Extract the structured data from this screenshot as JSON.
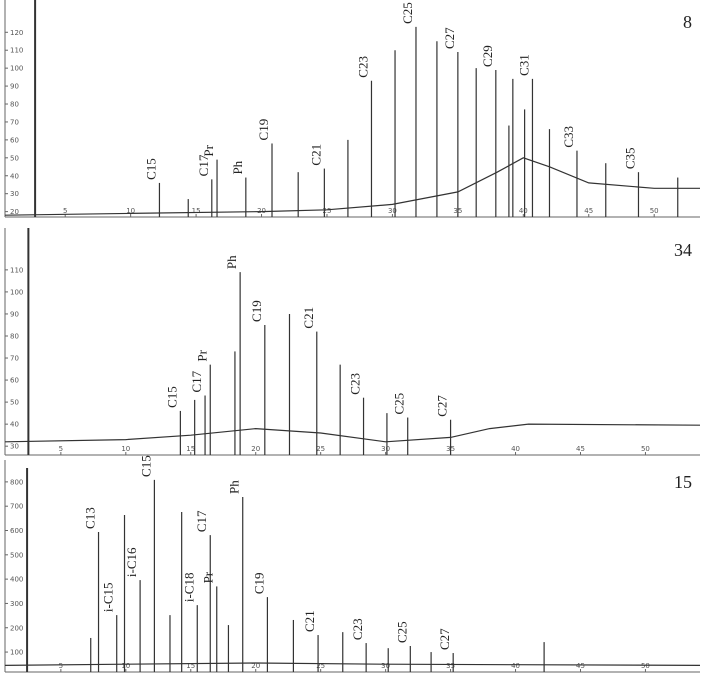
{
  "chart_data": [
    {
      "type": "chromatogram",
      "title": "8",
      "color": "#333333",
      "xlim": [
        0.4,
        53.5
      ],
      "ylim": [
        17,
        138
      ],
      "xticks": [
        5,
        10,
        15,
        20,
        25,
        30,
        35,
        40,
        45,
        50
      ],
      "yticks": [
        20,
        30,
        40,
        50,
        60,
        70,
        80,
        90,
        100,
        110,
        120
      ],
      "baseline": {
        "x": [
          0.4,
          10,
          20,
          25,
          30,
          35,
          38,
          40,
          42,
          45,
          50,
          53.5
        ],
        "values": [
          18,
          19,
          20,
          21,
          24,
          31,
          42,
          50,
          45,
          36,
          33,
          33
        ]
      },
      "peaks": {
        "x": [
          2.7,
          12.2,
          14.4,
          16.2,
          16.6,
          18.8,
          20.8,
          22.8,
          24.8,
          26.6,
          28.4,
          30.2,
          31.8,
          33.4,
          35.0,
          36.4,
          37.9,
          38.9,
          39.2,
          40.1,
          40.7,
          42.0,
          44.1,
          46.3,
          48.8,
          51.8
        ],
        "values": [
          138,
          36,
          27,
          38,
          49,
          39,
          58,
          42,
          44,
          60,
          93,
          110,
          123,
          115,
          109,
          100,
          99,
          68,
          94,
          77,
          94,
          66,
          54,
          47,
          42,
          39
        ],
        "labels": [
          null,
          "C15",
          null,
          "C17",
          "Pr",
          "Ph",
          "C19",
          null,
          "C21",
          null,
          "C23",
          null,
          "C25",
          null,
          "C27",
          null,
          "C29",
          null,
          null,
          null,
          "C31",
          null,
          "C33",
          null,
          "C35",
          null
        ]
      }
    },
    {
      "type": "chromatogram",
      "title": "34",
      "color": "#333333",
      "xlim": [
        0.7,
        54.2
      ],
      "ylim": [
        26,
        129
      ],
      "xticks": [
        5,
        10,
        15,
        20,
        25,
        30,
        35,
        40,
        45,
        50
      ],
      "yticks": [
        30,
        40,
        50,
        60,
        70,
        80,
        90,
        100,
        110
      ],
      "baseline": {
        "x": [
          0.7,
          10,
          15,
          20,
          25,
          30,
          35,
          38,
          41,
          54.2
        ],
        "values": [
          32,
          33,
          35,
          38,
          36,
          32,
          34,
          38,
          40,
          39.5
        ]
      },
      "peaks": {
        "x": [
          2.5,
          14.2,
          15.3,
          16.1,
          16.5,
          18.4,
          18.8,
          20.7,
          22.6,
          24.7,
          26.5,
          28.3,
          30.1,
          31.7,
          35.0
        ],
        "values": [
          129,
          46,
          51,
          53,
          67,
          73,
          109,
          85,
          90,
          82,
          67,
          52,
          45,
          43,
          42
        ],
        "labels": [
          null,
          "C15",
          null,
          "C17",
          "Pr",
          null,
          "Ph",
          "C19",
          null,
          "C21",
          null,
          "C23",
          null,
          "C25",
          "C27"
        ]
      }
    },
    {
      "type": "chromatogram",
      "title": "15",
      "color": "#333333",
      "xlim": [
        0.7,
        54.2
      ],
      "ylim": [
        18,
        890
      ],
      "xticks": [
        5,
        10,
        15,
        20,
        25,
        30,
        35,
        40,
        45,
        50
      ],
      "yticks": [
        100,
        200,
        300,
        400,
        500,
        600,
        700,
        800
      ],
      "baseline": {
        "x": [
          0.7,
          10,
          20,
          30,
          40,
          54.2
        ],
        "values": [
          45,
          50,
          55,
          50,
          48,
          45
        ]
      },
      "peaks": {
        "x": [
          2.4,
          7.3,
          7.9,
          9.3,
          9.9,
          11.1,
          12.2,
          13.4,
          14.3,
          15.5,
          16.5,
          17.0,
          17.9,
          19.0,
          20.9,
          22.9,
          24.8,
          26.7,
          28.5,
          30.2,
          31.9,
          33.5,
          35.2,
          42.2
        ],
        "values": [
          857,
          158,
          594,
          252,
          664,
          396,
          808,
          252,
          676,
          293,
          581,
          370,
          211,
          738,
          326,
          232,
          170,
          182,
          137,
          116,
          125,
          100,
          96,
          141
        ],
        "labels": [
          null,
          null,
          "C13",
          "i-C15",
          null,
          "i-C16",
          "C15",
          null,
          null,
          "i-C18",
          "C17",
          "Pr",
          null,
          "Ph",
          "C19",
          null,
          "C21",
          null,
          "C23",
          null,
          "C25",
          null,
          "C27",
          null
        ]
      }
    }
  ]
}
